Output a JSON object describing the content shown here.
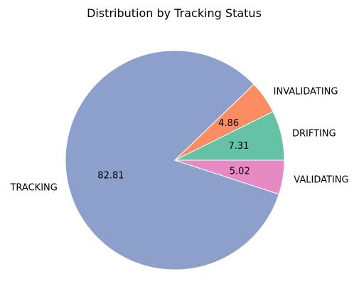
{
  "chart_data": {
    "type": "pie",
    "title": "Distribution by Tracking Status",
    "start_angle_deg": 0,
    "direction": "counterclockwise",
    "slices": [
      {
        "label": "DRIFTING",
        "value": 7.31,
        "display": "7.31",
        "color": "#66c2a5"
      },
      {
        "label": "INVALIDATING",
        "value": 4.86,
        "display": "4.86",
        "color": "#fc8d62"
      },
      {
        "label": "TRACKING",
        "value": 82.81,
        "display": "82.81",
        "color": "#8da0cb"
      },
      {
        "label": "VALIDATING",
        "value": 5.02,
        "display": "5.02",
        "color": "#e78ac3"
      }
    ]
  }
}
